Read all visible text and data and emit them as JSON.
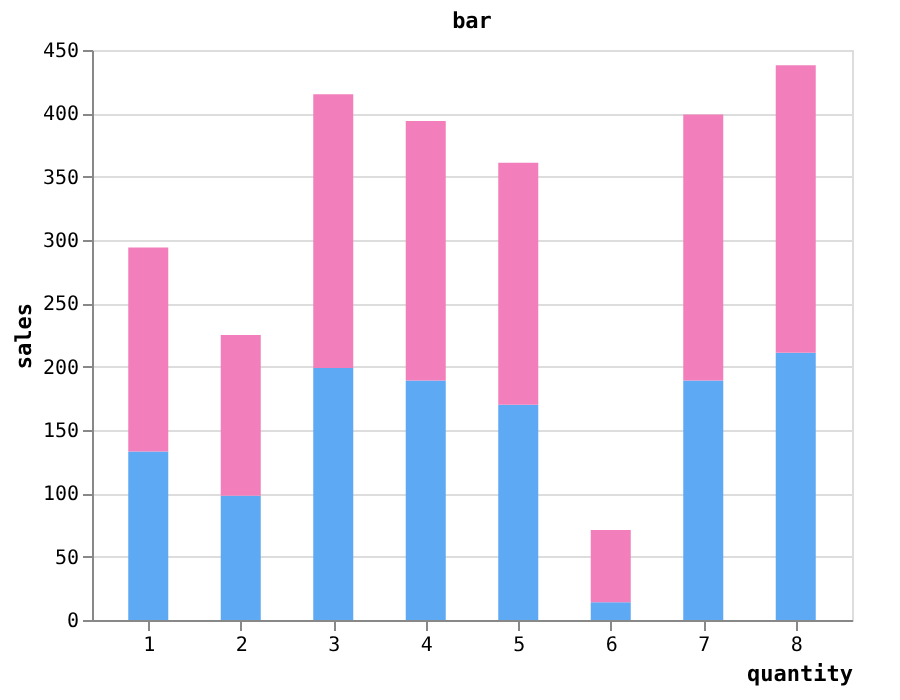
{
  "chart_data": {
    "type": "bar",
    "title": "bar",
    "xlabel": "quantity",
    "ylabel": "sales",
    "categories": [
      "1",
      "2",
      "3",
      "4",
      "5",
      "6",
      "7",
      "8"
    ],
    "stacked": true,
    "series": [
      {
        "color": "#5ea9f3",
        "values": [
          133,
          98,
          199,
          189,
          170,
          14,
          189,
          211
        ]
      },
      {
        "color": "#f27fbc",
        "values": [
          161,
          127,
          216,
          205,
          191,
          57,
          210,
          227
        ]
      }
    ],
    "ylim": [
      0,
      450
    ],
    "yticks": [
      0,
      50,
      100,
      150,
      200,
      250,
      300,
      350,
      400,
      450
    ],
    "grid": "y"
  }
}
